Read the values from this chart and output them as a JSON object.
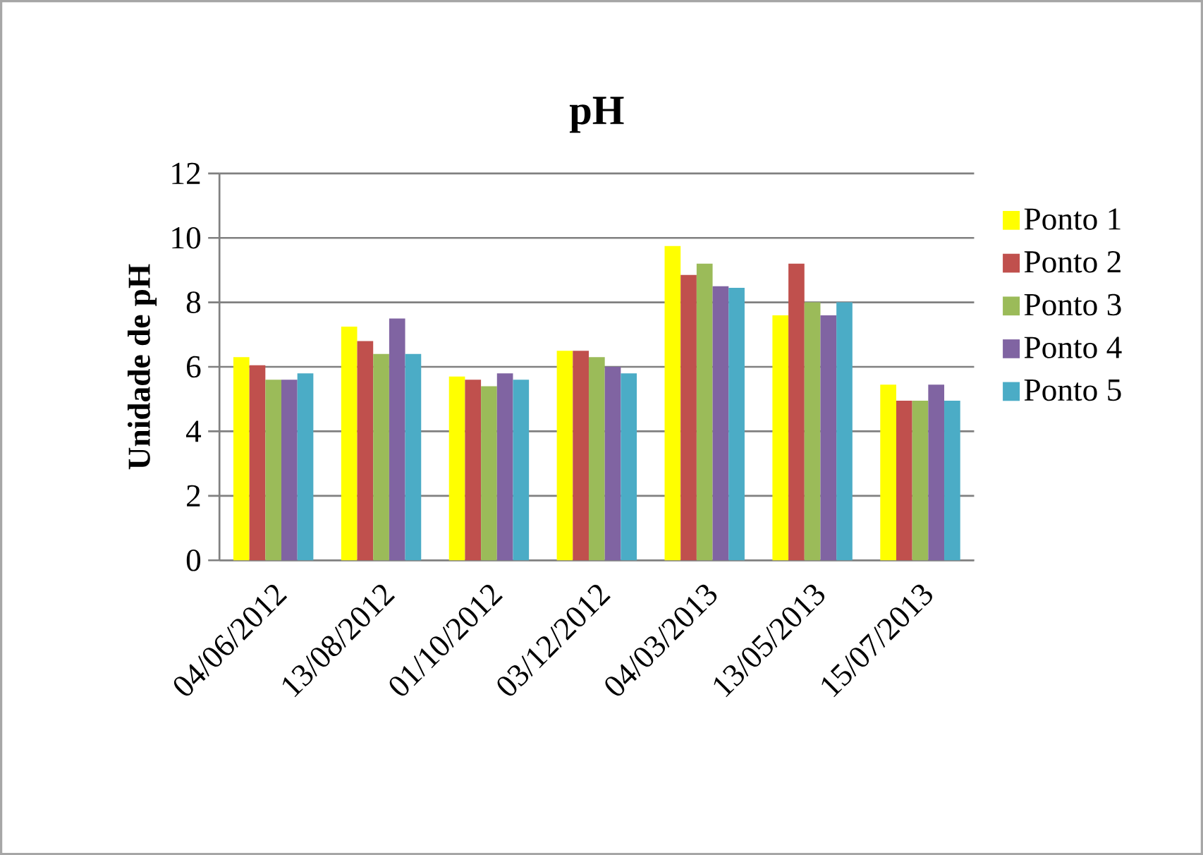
{
  "chart_data": {
    "type": "bar",
    "title": "pH",
    "ylabel": "Unidade de pH",
    "categories": [
      "04/06/2012",
      "13/08/2012",
      "01/10/2012",
      "03/12/2012",
      "04/03/2013",
      "13/05/2013",
      "15/07/2013"
    ],
    "series": [
      {
        "name": "Ponto 1",
        "color": "#ffff00",
        "values": [
          6.3,
          7.25,
          5.7,
          6.5,
          9.75,
          7.6,
          5.45
        ]
      },
      {
        "name": "Ponto 2",
        "color": "#c0504d",
        "values": [
          6.05,
          6.8,
          5.6,
          6.5,
          8.85,
          9.2,
          4.95
        ]
      },
      {
        "name": "Ponto 3",
        "color": "#9bbb59",
        "values": [
          5.6,
          6.4,
          5.4,
          6.3,
          9.2,
          8.0,
          4.95
        ]
      },
      {
        "name": "Ponto 4",
        "color": "#8064a2",
        "values": [
          5.6,
          7.5,
          5.8,
          6.0,
          8.5,
          7.6,
          5.45
        ]
      },
      {
        "name": "Ponto 5",
        "color": "#4bacc6",
        "values": [
          5.8,
          6.4,
          5.6,
          5.8,
          8.45,
          8.0,
          4.95
        ]
      }
    ],
    "ylim": [
      0,
      12
    ],
    "yticks": [
      0,
      2,
      4,
      6,
      8,
      10,
      12
    ],
    "grid": "y",
    "legend": "right"
  }
}
